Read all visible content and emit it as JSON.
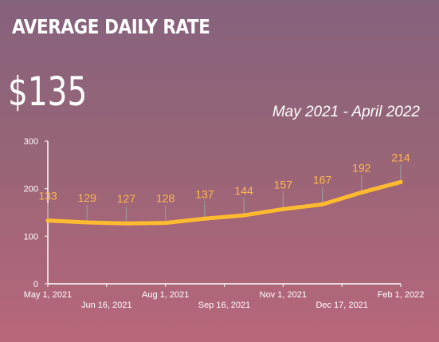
{
  "header": {
    "title": "AVERAGE DAILY RATE",
    "big_number": "$135",
    "period": "May 2021 - April 2022"
  },
  "chart_data": {
    "type": "line",
    "x_labels": [
      "May 1, 2021",
      "Jun 16, 2021",
      "Aug 1, 2021",
      "Sep 16, 2021",
      "Nov 1, 2021",
      "Dec 17, 2021",
      "Feb 1, 2022"
    ],
    "series": [
      {
        "values": [
          133,
          129,
          127,
          128,
          137,
          144,
          157,
          167,
          192,
          214
        ],
        "color": "#ffbb2f"
      }
    ],
    "yticks": [
      0,
      100,
      200,
      300
    ],
    "ylim": [
      0,
      300
    ],
    "grid": false,
    "label_color": "#ffb74d",
    "axis_color": "#ffffff"
  }
}
